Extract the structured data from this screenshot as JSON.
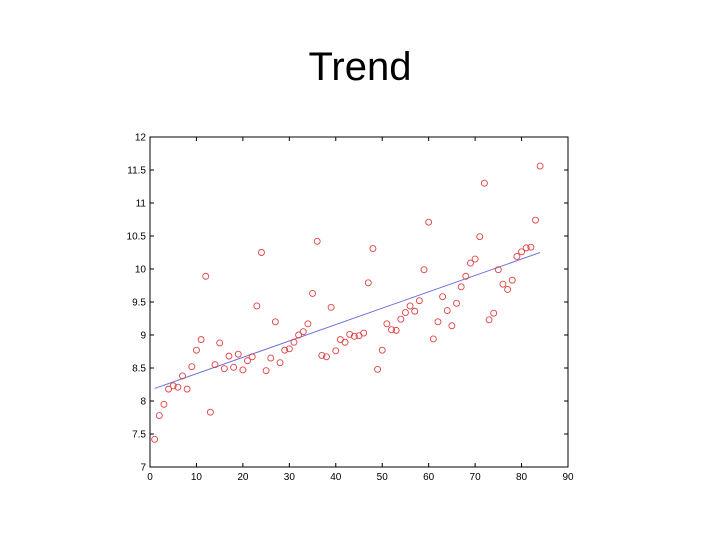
{
  "slide": {
    "title": "Trend"
  },
  "chart_data": {
    "type": "scatter",
    "title": "",
    "xlabel": "",
    "ylabel": "",
    "xlim": [
      0,
      90
    ],
    "ylim": [
      7,
      12
    ],
    "xticks": [
      0,
      10,
      20,
      30,
      40,
      50,
      60,
      70,
      80,
      90
    ],
    "yticks": [
      7,
      7.5,
      8,
      8.5,
      9,
      9.5,
      10,
      10.5,
      11,
      11.5,
      12
    ],
    "grid": false,
    "legend": "none",
    "point_color": "#e04040",
    "trend_color": "#6f72d8",
    "series": [
      {
        "x": [
          1,
          2,
          3,
          4,
          5,
          6,
          7,
          8,
          9,
          10,
          11,
          12,
          13,
          14,
          15,
          16,
          17,
          18,
          19,
          20,
          21,
          22,
          23,
          24,
          25,
          26,
          27,
          28,
          29,
          30,
          31,
          32,
          33,
          34,
          35,
          36,
          37,
          38,
          39,
          40,
          41,
          42,
          43,
          44,
          45,
          46,
          47,
          48,
          49,
          50,
          51,
          52,
          53,
          54,
          55,
          56,
          57,
          58,
          59,
          60,
          61,
          62,
          63,
          64,
          65,
          66,
          67,
          68,
          69,
          70,
          71,
          72,
          73,
          74,
          75,
          76,
          77,
          78,
          79,
          80,
          81,
          82,
          83,
          84
        ],
        "y": [
          7.42,
          7.78,
          7.95,
          8.18,
          8.23,
          8.21,
          8.38,
          8.18,
          8.52,
          8.77,
          8.93,
          9.89,
          7.83,
          8.55,
          8.88,
          8.49,
          8.68,
          8.51,
          8.71,
          8.47,
          8.61,
          8.67,
          9.44,
          10.25,
          8.46,
          8.65,
          9.2,
          8.58,
          8.77,
          8.79,
          8.89,
          9.0,
          9.05,
          9.17,
          9.63,
          10.42,
          8.69,
          8.67,
          9.42,
          8.76,
          8.93,
          8.89,
          9.01,
          8.98,
          8.99,
          9.03,
          9.79,
          10.31,
          8.48,
          8.77,
          9.17,
          9.08,
          9.07,
          9.24,
          9.34,
          9.44,
          9.36,
          9.52,
          9.99,
          10.71,
          8.94,
          9.2,
          9.58,
          9.37,
          9.14,
          9.48,
          9.73,
          9.89,
          10.09,
          10.15,
          10.49,
          11.3,
          9.23,
          9.33,
          9.99,
          9.77,
          9.69,
          9.83,
          10.19,
          10.26,
          10.32,
          10.33,
          10.74,
          11.56
        ]
      }
    ],
    "trend_line": {
      "x": [
        1,
        84
      ],
      "y": [
        8.19,
        10.25
      ]
    }
  }
}
